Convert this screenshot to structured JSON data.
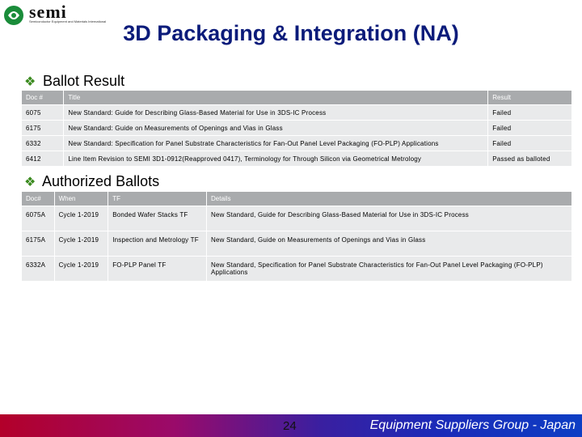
{
  "header": {
    "logo_word": "semi",
    "logo_tagline": "Semiconductor Equipment and Materials International",
    "title": "3D Packaging & Integration (NA)"
  },
  "ballot_result": {
    "heading": "Ballot Result",
    "columns": [
      "Doc #",
      "Title",
      "Result"
    ],
    "rows": [
      [
        "6075",
        "New Standard: Guide for Describing Glass-Based Material for Use in 3DS-IC Process",
        "Failed"
      ],
      [
        "6175",
        "New Standard: Guide on Measurements of Openings and Vias in Glass",
        "Failed"
      ],
      [
        "6332",
        "New Standard: Specification for Panel Substrate Characteristics for Fan-Out Panel Level Packaging (FO-PLP) Applications",
        "Failed"
      ],
      [
        "6412",
        "Line Item Revision to SEMI 3D1-0912(Reapproved 0417), Terminology for Through Silicon via Geometrical Metrology",
        "Passed as balloted"
      ]
    ]
  },
  "authorized_ballots": {
    "heading": "Authorized Ballots",
    "columns": [
      "Doc#",
      "When",
      "TF",
      "Details"
    ],
    "rows": [
      [
        "6075A",
        "Cycle 1-2019",
        "Bonded Wafer Stacks TF",
        "New Standard, Guide for Describing Glass-Based Material for Use in 3DS-IC Process"
      ],
      [
        "6175A",
        "Cycle 1-2019",
        "Inspection and Metrology TF",
        "New Standard, Guide on Measurements of Openings and Vias in Glass"
      ],
      [
        "6332A",
        "Cycle 1-2019",
        "FO-PLP Panel TF",
        "New Standard, Specification for Panel Substrate Characteristics for Fan-Out Panel Level Packaging (FO-PLP) Applications"
      ]
    ]
  },
  "footer": {
    "page_number": "24",
    "group": "Equipment Suppliers Group - Japan"
  },
  "colors": {
    "title": "#0b1b7a",
    "bullet": "#3a8a1e",
    "table_header": "#a9abad",
    "table_cell": "#e9eaeb"
  }
}
